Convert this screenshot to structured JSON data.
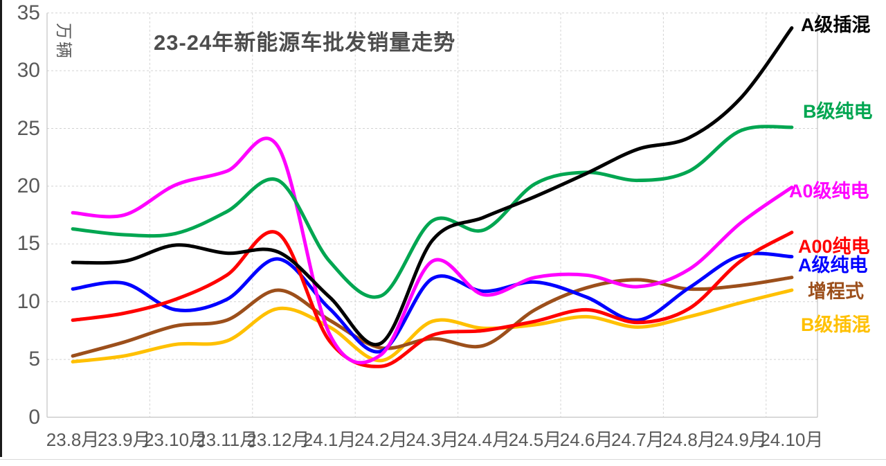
{
  "chart_data": {
    "type": "line",
    "title": "23-24年新能源车批发销量走势",
    "ylabel": "万辆",
    "xlabel": "",
    "ylim": [
      0,
      35
    ],
    "y_ticks": [
      0,
      5,
      10,
      15,
      20,
      25,
      30,
      35
    ],
    "grid": true,
    "line_style": "smooth",
    "legend_position": "right-of-line-ends",
    "categories": [
      "23.8月",
      "23.9月",
      "23.10月",
      "23.11月",
      "23.12月",
      "24.1月",
      "24.2月",
      "24.3月",
      "24.4月",
      "24.5月",
      "24.6月",
      "24.7月",
      "24.8月",
      "24.9月",
      "24.10月"
    ],
    "series": [
      {
        "name": "A级插混",
        "color": "#000000",
        "values": [
          13.4,
          13.5,
          14.9,
          14.2,
          14.3,
          10.4,
          6.4,
          15.3,
          17.3,
          19.1,
          21.1,
          23.2,
          24.2,
          27.6,
          33.7
        ]
      },
      {
        "name": "B级纯电",
        "color": "#00A651",
        "values": [
          16.3,
          15.8,
          15.9,
          17.8,
          20.5,
          13.5,
          10.5,
          17.0,
          16.2,
          20.2,
          21.2,
          20.5,
          21.3,
          24.8,
          25.1
        ]
      },
      {
        "name": "A0级纯电",
        "color": "#FF00FF",
        "values": [
          17.7,
          17.5,
          20.1,
          21.3,
          23.4,
          7.2,
          5.4,
          13.5,
          10.6,
          12.1,
          12.3,
          11.3,
          12.8,
          16.8,
          19.9
        ]
      },
      {
        "name": "A00纯电",
        "color": "#FF0000",
        "values": [
          8.4,
          9.0,
          10.2,
          12.3,
          15.9,
          6.6,
          4.4,
          7.1,
          7.5,
          8.3,
          9.3,
          8.2,
          9.4,
          13.5,
          16.0
        ]
      },
      {
        "name": "A级纯电",
        "color": "#0000FF",
        "values": [
          11.1,
          11.6,
          9.3,
          10.2,
          13.7,
          9.4,
          5.7,
          12.0,
          10.9,
          11.7,
          10.4,
          8.4,
          11.2,
          14.0,
          13.9
        ]
      },
      {
        "name": "增程式",
        "color": "#9C4F1B",
        "values": [
          5.3,
          6.5,
          7.9,
          8.4,
          11.0,
          8.4,
          6.0,
          6.8,
          6.2,
          9.3,
          11.2,
          11.9,
          11.1,
          11.4,
          12.1
        ]
      },
      {
        "name": "B级插混",
        "color": "#FFC000",
        "values": [
          4.8,
          5.3,
          6.3,
          6.6,
          9.4,
          7.8,
          4.9,
          8.3,
          7.7,
          8.0,
          8.7,
          7.8,
          8.7,
          9.9,
          11.0
        ]
      }
    ]
  }
}
